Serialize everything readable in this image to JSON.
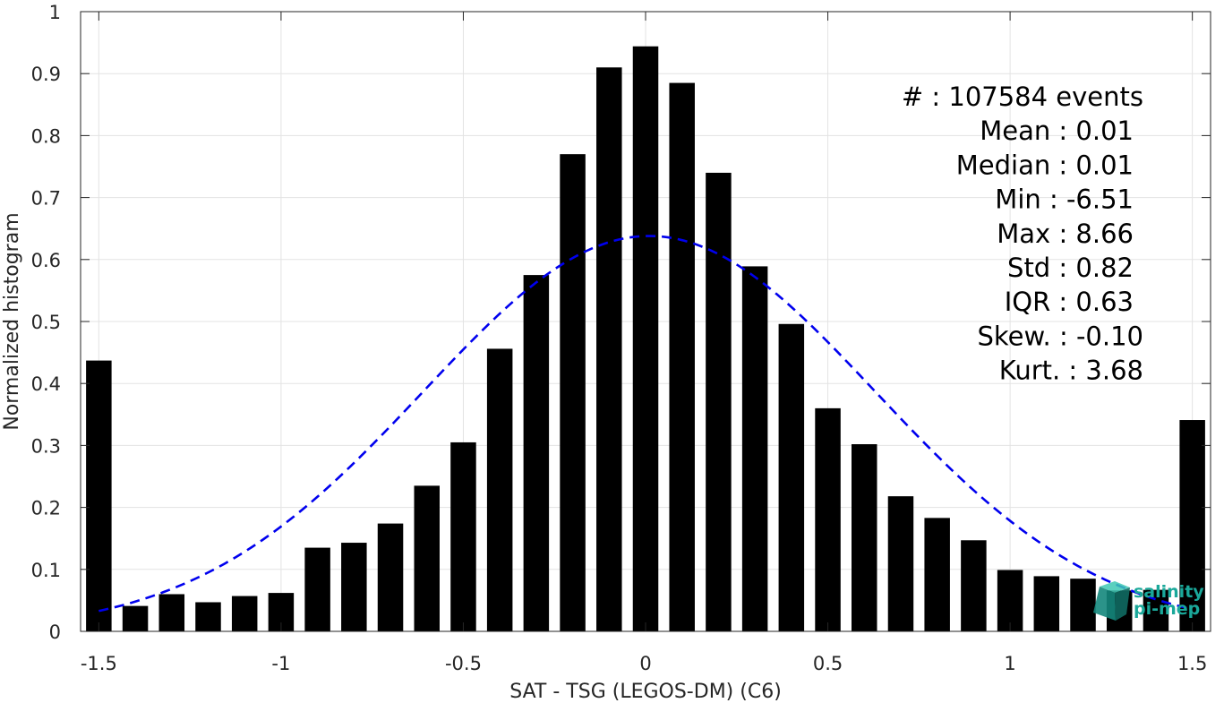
{
  "chart_data": {
    "type": "bar",
    "xlabel": "SAT - TSG (LEGOS-DM) (C6)",
    "ylabel": "Normalized histogram",
    "xlim": [
      -1.55,
      1.55
    ],
    "ylim": [
      0,
      1
    ],
    "grid": true,
    "x_ticks": [
      -1.5,
      -1,
      -0.5,
      0,
      0.5,
      1,
      1.5
    ],
    "x_tick_labels": [
      "-1.5",
      "-1",
      "-0.5",
      "0",
      "0.5",
      "1",
      "1.5"
    ],
    "y_ticks": [
      0,
      0.1,
      0.2,
      0.3,
      0.4,
      0.5,
      0.6,
      0.7,
      0.8,
      0.9,
      1
    ],
    "y_tick_labels": [
      "0",
      "0.1",
      "0.2",
      "0.3",
      "0.4",
      "0.5",
      "0.6",
      "0.7",
      "0.8",
      "0.9",
      "1"
    ],
    "bar_color": "#000000",
    "bar_width": 0.07,
    "x": [
      -1.5,
      -1.4,
      -1.3,
      -1.2,
      -1.1,
      -1.0,
      -0.9,
      -0.8,
      -0.7,
      -0.6,
      -0.5,
      -0.4,
      -0.3,
      -0.2,
      -0.1,
      0.0,
      0.1,
      0.2,
      0.3,
      0.4,
      0.5,
      0.6,
      0.7,
      0.8,
      0.9,
      1.0,
      1.1,
      1.2,
      1.3,
      1.4,
      1.5
    ],
    "values": [
      0.437,
      0.041,
      0.06,
      0.047,
      0.057,
      0.062,
      0.135,
      0.143,
      0.174,
      0.235,
      0.305,
      0.456,
      0.575,
      0.77,
      0.91,
      0.944,
      0.885,
      0.74,
      0.589,
      0.496,
      0.36,
      0.302,
      0.218,
      0.183,
      0.147,
      0.099,
      0.089,
      0.085,
      0.066,
      0.067,
      0.341
    ],
    "fit_curve": {
      "style": "dashed",
      "color": "#0000ee",
      "mean": 0.01,
      "std": 0.62,
      "peak": 0.638,
      "x_range": [
        -1.5,
        1.5
      ]
    },
    "stats_lines": [
      "#  : 107584 events",
      "Mean : 0.01",
      "Median : 0.01",
      "Min : -6.51",
      "Max : 8.66",
      "Std : 0.82",
      "IQR : 0.63",
      "Skew. : -0.10",
      "Kurt. : 3.68"
    ]
  },
  "logo": {
    "line1": "salinity",
    "line2": "pi-mep",
    "color": "#1aa89a"
  }
}
